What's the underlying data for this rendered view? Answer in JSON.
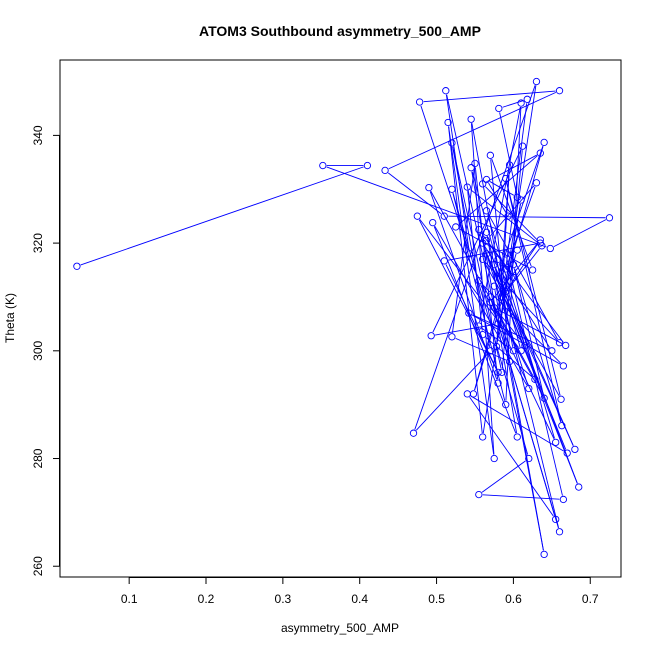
{
  "chart_data": {
    "type": "line",
    "title": "ATOM3 Southbound asymmetry_500_AMP",
    "xlabel": "asymmetry_500_AMP",
    "ylabel": "Theta (K)",
    "xlim": [
      0.01,
      0.74
    ],
    "ylim": [
      258,
      354
    ],
    "x_ticks": [
      0.1,
      0.2,
      0.3,
      0.4,
      0.5,
      0.6,
      0.7
    ],
    "y_ticks": [
      260,
      280,
      300,
      320,
      340
    ],
    "grid": false,
    "line_color": "#0000ff",
    "marker": "open-circle",
    "series": [
      {
        "points": [
          [
            0.032,
            315.7
          ],
          [
            0.41,
            334.4
          ],
          [
            0.352,
            334.4
          ],
          [
            0.648,
            319.0
          ],
          [
            0.725,
            324.7
          ],
          [
            0.51,
            325.0
          ],
          [
            0.433,
            333.5
          ],
          [
            0.66,
            348.3
          ],
          [
            0.478,
            346.2
          ],
          [
            0.543,
            318.0
          ],
          [
            0.512,
            348.3
          ],
          [
            0.58,
            305.0
          ],
          [
            0.493,
            302.8
          ],
          [
            0.612,
            338.0
          ],
          [
            0.585,
            296.0
          ],
          [
            0.52,
            338.6
          ],
          [
            0.57,
            300.0
          ],
          [
            0.47,
            284.7
          ],
          [
            0.63,
            350.0
          ],
          [
            0.56,
            284.0
          ],
          [
            0.515,
            342.4
          ],
          [
            0.575,
            280.0
          ],
          [
            0.545,
            343.0
          ],
          [
            0.6,
            300.0
          ],
          [
            0.555,
            304.6
          ],
          [
            0.61,
            346.0
          ],
          [
            0.59,
            290.0
          ],
          [
            0.52,
            330.0
          ],
          [
            0.62,
            280.0
          ],
          [
            0.555,
            273.3
          ],
          [
            0.665,
            272.4
          ],
          [
            0.59,
            318.0
          ],
          [
            0.605,
            318.7
          ],
          [
            0.548,
            292.0
          ],
          [
            0.64,
            338.7
          ],
          [
            0.575,
            312.0
          ],
          [
            0.64,
            262.2
          ],
          [
            0.565,
            322.0
          ],
          [
            0.66,
            266.4
          ],
          [
            0.57,
            310.0
          ],
          [
            0.655,
            268.7
          ],
          [
            0.54,
            292.0
          ],
          [
            0.67,
            281.0
          ],
          [
            0.565,
            318.0
          ],
          [
            0.68,
            281.7
          ],
          [
            0.575,
            316.0
          ],
          [
            0.685,
            274.7
          ],
          [
            0.56,
            320.0
          ],
          [
            0.65,
            300.0
          ],
          [
            0.542,
            307.0
          ],
          [
            0.665,
            297.2
          ],
          [
            0.555,
            313.0
          ],
          [
            0.655,
            283.0
          ],
          [
            0.565,
            326.0
          ],
          [
            0.66,
            301.5
          ],
          [
            0.56,
            317.0
          ],
          [
            0.662,
            291.0
          ],
          [
            0.59,
            332.0
          ],
          [
            0.663,
            286.1
          ],
          [
            0.6,
            316.0
          ],
          [
            0.64,
            291.2
          ],
          [
            0.575,
            308.0
          ],
          [
            0.668,
            301.0
          ],
          [
            0.555,
            322.5
          ],
          [
            0.62,
            293.0
          ],
          [
            0.495,
            323.8
          ],
          [
            0.605,
            284.0
          ],
          [
            0.545,
            334.0
          ],
          [
            0.61,
            300.0
          ],
          [
            0.475,
            325.0
          ],
          [
            0.58,
            296.0
          ],
          [
            0.51,
            316.7
          ],
          [
            0.635,
            320.0
          ],
          [
            0.56,
            331.0
          ],
          [
            0.635,
            336.7
          ],
          [
            0.525,
            323.0
          ],
          [
            0.625,
            315.0
          ],
          [
            0.57,
            336.3
          ],
          [
            0.595,
            298.0
          ],
          [
            0.52,
            302.6
          ],
          [
            0.55,
            334.8
          ],
          [
            0.58,
            294.0
          ],
          [
            0.49,
            330.3
          ],
          [
            0.628,
            294.7
          ],
          [
            0.56,
            303.0
          ],
          [
            0.54,
            330.4
          ],
          [
            0.637,
            319.5
          ],
          [
            0.585,
            310.0
          ],
          [
            0.595,
            334.5
          ],
          [
            0.578,
            300.8
          ],
          [
            0.61,
            328.0
          ],
          [
            0.59,
            311.0
          ],
          [
            0.635,
            320.6
          ],
          [
            0.57,
            309.0
          ],
          [
            0.615,
            301.0
          ],
          [
            0.58,
            317.0
          ],
          [
            0.6,
            313.6
          ],
          [
            0.565,
            320.5
          ],
          [
            0.63,
            331.2
          ],
          [
            0.59,
            315.2
          ],
          [
            0.618,
            346.7
          ],
          [
            0.581,
            345.0
          ],
          [
            0.605,
            328.5
          ],
          [
            0.565,
            331.8
          ],
          [
            0.593,
            325.0
          ]
        ]
      }
    ]
  }
}
